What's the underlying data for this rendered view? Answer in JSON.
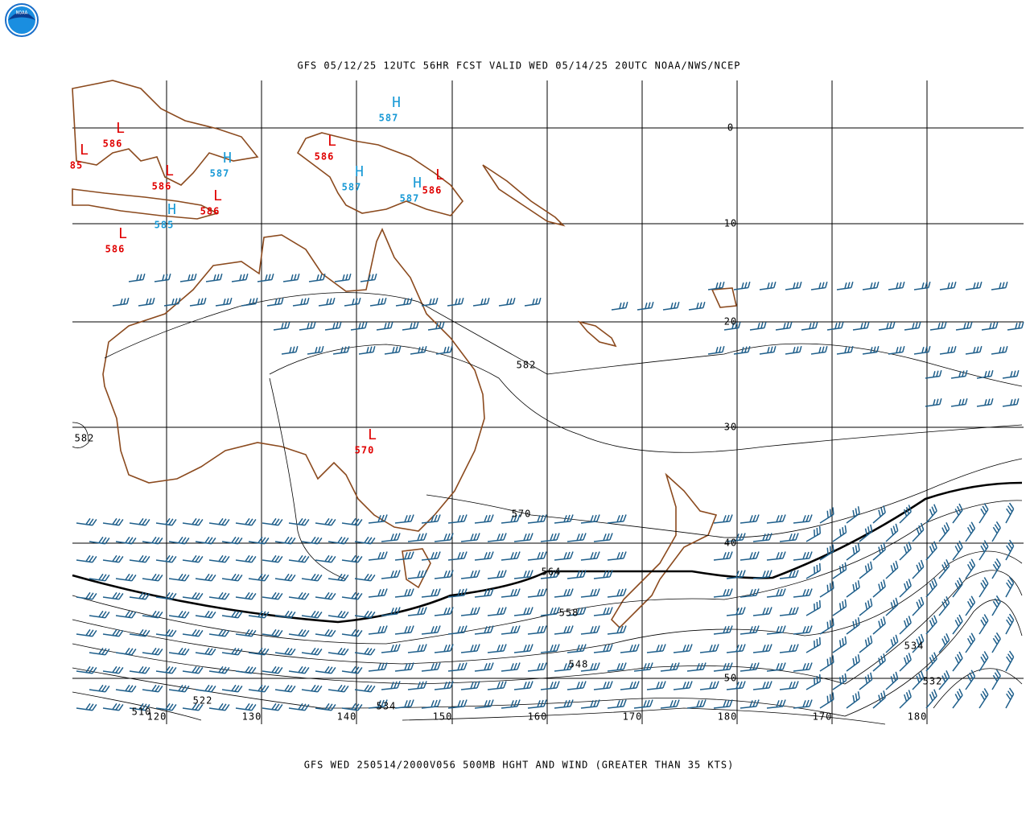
{
  "header": {
    "logo": "NOAA",
    "title": "GFS 05/12/25 12UTC 56HR FCST VALID WED 05/14/25 20UTC NOAA/NWS/NCEP"
  },
  "map": {
    "lat_labels": [
      "0",
      "10",
      "20",
      "30",
      "40",
      "50"
    ],
    "lon_labels": [
      "120",
      "130",
      "140",
      "150",
      "160",
      "170",
      "180",
      "170",
      "180"
    ],
    "centers": [
      {
        "type": "L",
        "value": "586"
      },
      {
        "type": "L",
        "value": "85"
      },
      {
        "type": "L",
        "value": "586"
      },
      {
        "type": "H",
        "value": "587"
      },
      {
        "type": "H",
        "value": "587"
      },
      {
        "type": "L",
        "value": "586"
      },
      {
        "type": "H",
        "value": "587"
      },
      {
        "type": "H",
        "value": "587"
      },
      {
        "type": "L",
        "value": "586"
      },
      {
        "type": "L",
        "value": "586"
      },
      {
        "type": "H",
        "value": "585"
      },
      {
        "type": "L",
        "value": "586"
      },
      {
        "type": "L",
        "value": "570"
      }
    ],
    "contour_labels": [
      "582",
      "582",
      "570",
      "564",
      "558",
      "548",
      "534",
      "532",
      "510",
      "522",
      "534"
    ]
  },
  "footer": "GFS WED 250514/2000V056 500MB HGHT AND WIND (GREATER THAN 35 KTS)"
}
